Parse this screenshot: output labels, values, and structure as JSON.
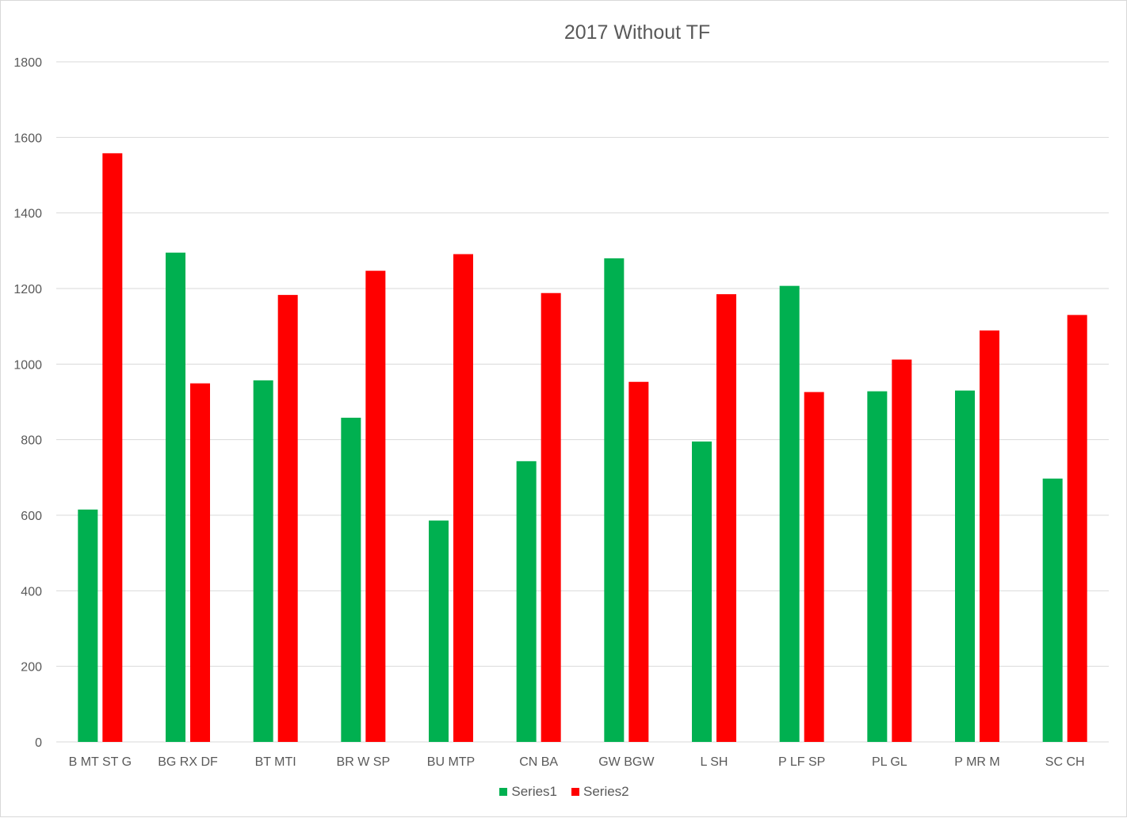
{
  "chart_data": {
    "type": "bar",
    "title": "2017 Without TF",
    "xlabel": "",
    "ylabel": "",
    "ylim": [
      0,
      1800
    ],
    "yticks": [
      0,
      200,
      400,
      600,
      800,
      1000,
      1200,
      1400,
      1600,
      1800
    ],
    "grid": true,
    "legend_position": "bottom",
    "categories": [
      "B MT ST G",
      "BG RX DF",
      "BT MTI",
      "BR W SP",
      "BU MTP",
      "CN BA",
      "GW BGW",
      "L SH",
      "P LF SP",
      "PL GL",
      "P MR M",
      "SC CH"
    ],
    "series": [
      {
        "name": "Series1",
        "color": "#00b050",
        "values": [
          615,
          1295,
          957,
          858,
          586,
          743,
          1280,
          795,
          1207,
          928,
          930,
          697
        ]
      },
      {
        "name": "Series2",
        "color": "#ff0000",
        "values": [
          1558,
          949,
          1183,
          1247,
          1291,
          1188,
          953,
          1185,
          926,
          1012,
          1089,
          1130
        ]
      }
    ]
  }
}
